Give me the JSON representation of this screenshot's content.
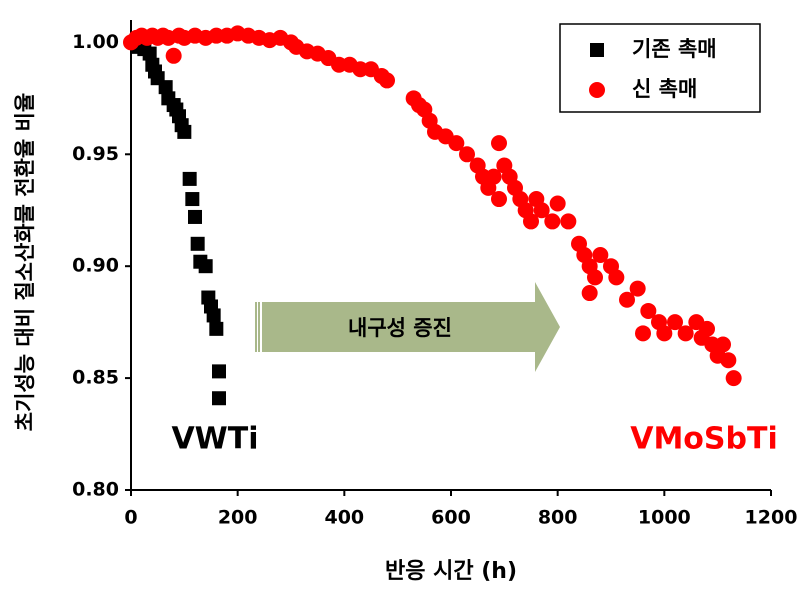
{
  "chart_data": {
    "type": "scatter",
    "xlabel": "반응 시간 (h)",
    "ylabel": "초기성능 대비 질소산화물 전환율 비율",
    "xlim": [
      0,
      1200
    ],
    "ylim": [
      0.8,
      1.01
    ],
    "xticks": [
      0,
      200,
      400,
      600,
      800,
      1000,
      1200
    ],
    "yticks": [
      {
        "value": 0.8,
        "label": "0.80"
      },
      0.85,
      {
        "value": 0.9,
        "label": "0.90"
      },
      0.95,
      {
        "value": 1.0,
        "label": "1.00"
      }
    ],
    "legend": "upper right",
    "annotations": [
      "VWTi",
      "VMoSbTi",
      "내구성 증진"
    ],
    "series": [
      {
        "name": "기존 촉매",
        "color": "#000000",
        "marker": "square",
        "x": [
          15,
          25,
          35,
          40,
          45,
          50,
          65,
          70,
          80,
          85,
          90,
          95,
          100,
          110,
          115,
          120,
          125,
          130,
          140,
          145,
          150,
          155,
          160,
          165,
          165
        ],
        "values": [
          0.998,
          0.997,
          0.995,
          0.99,
          0.987,
          0.984,
          0.98,
          0.975,
          0.972,
          0.97,
          0.967,
          0.963,
          0.96,
          0.939,
          0.93,
          0.922,
          0.91,
          0.902,
          0.9,
          0.886,
          0.882,
          0.878,
          0.872,
          0.853,
          0.841
        ]
      },
      {
        "name": "신 촉매",
        "color": "#ff0000",
        "marker": "circle",
        "x": [
          0,
          10,
          20,
          30,
          40,
          50,
          60,
          70,
          80,
          90,
          100,
          120,
          140,
          160,
          180,
          200,
          220,
          240,
          260,
          280,
          300,
          310,
          330,
          350,
          370,
          390,
          410,
          430,
          450,
          470,
          480,
          530,
          540,
          550,
          560,
          570,
          590,
          610,
          630,
          650,
          660,
          670,
          680,
          690,
          700,
          710,
          720,
          730,
          740,
          760,
          770,
          790,
          800,
          820,
          840,
          850,
          860,
          870,
          880,
          860,
          900,
          910,
          930,
          950,
          970,
          990,
          1000,
          1020,
          1040,
          1060,
          1070,
          1080,
          1090,
          1100,
          1110,
          1120,
          1130,
          690,
          750,
          960
        ],
        "values": [
          1.0,
          1.002,
          1.003,
          1.002,
          1.003,
          1.002,
          1.003,
          1.002,
          0.994,
          1.003,
          1.002,
          1.003,
          1.002,
          1.003,
          1.003,
          1.004,
          1.003,
          1.002,
          1.001,
          1.002,
          1.0,
          0.998,
          0.996,
          0.995,
          0.993,
          0.99,
          0.99,
          0.988,
          0.988,
          0.985,
          0.983,
          0.975,
          0.972,
          0.97,
          0.965,
          0.96,
          0.958,
          0.955,
          0.95,
          0.945,
          0.94,
          0.935,
          0.94,
          0.93,
          0.945,
          0.94,
          0.935,
          0.93,
          0.925,
          0.93,
          0.925,
          0.92,
          0.928,
          0.92,
          0.91,
          0.905,
          0.9,
          0.895,
          0.905,
          0.888,
          0.9,
          0.895,
          0.885,
          0.89,
          0.88,
          0.875,
          0.87,
          0.875,
          0.87,
          0.875,
          0.868,
          0.872,
          0.865,
          0.86,
          0.865,
          0.858,
          0.85,
          0.955,
          0.92,
          0.87
        ]
      }
    ]
  }
}
